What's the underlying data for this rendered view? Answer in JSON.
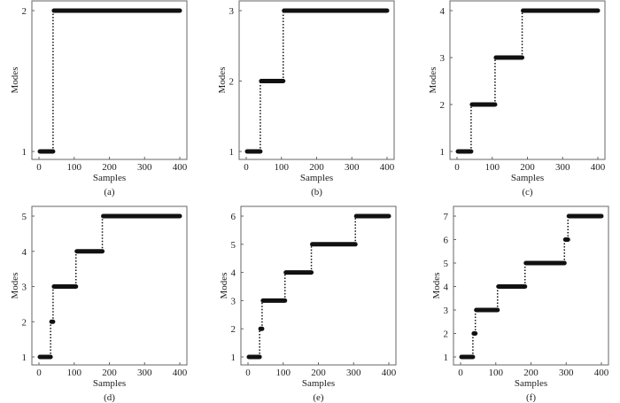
{
  "chart_data": [
    {
      "type": "line",
      "panel_label": "(a)",
      "xlabel": "Samples",
      "ylabel": "Modes",
      "xlim": [
        0,
        400
      ],
      "xticks": [
        0,
        100,
        200,
        300,
        400
      ],
      "yticks": [
        1,
        2
      ],
      "steps": [
        {
          "x0": 0,
          "x1": 40,
          "y": 1
        },
        {
          "x0": 40,
          "x1": 400,
          "y": 2
        }
      ]
    },
    {
      "type": "line",
      "panel_label": "(b)",
      "xlabel": "Samples",
      "ylabel": "Modes",
      "xlim": [
        0,
        400
      ],
      "xticks": [
        0,
        100,
        200,
        300,
        400
      ],
      "yticks": [
        1,
        2,
        3
      ],
      "steps": [
        {
          "x0": 0,
          "x1": 40,
          "y": 1
        },
        {
          "x0": 40,
          "x1": 105,
          "y": 2
        },
        {
          "x0": 105,
          "x1": 400,
          "y": 3
        }
      ]
    },
    {
      "type": "line",
      "panel_label": "(c)",
      "xlabel": "Samples",
      "ylabel": "Modes",
      "xlim": [
        0,
        400
      ],
      "xticks": [
        0,
        100,
        200,
        300,
        400
      ],
      "yticks": [
        1,
        2,
        3,
        4
      ],
      "steps": [
        {
          "x0": 0,
          "x1": 40,
          "y": 1
        },
        {
          "x0": 40,
          "x1": 108,
          "y": 2
        },
        {
          "x0": 108,
          "x1": 185,
          "y": 3
        },
        {
          "x0": 185,
          "x1": 400,
          "y": 4
        }
      ]
    },
    {
      "type": "line",
      "panel_label": "(d)",
      "xlabel": "Samples",
      "ylabel": "Modes",
      "xlim": [
        0,
        400
      ],
      "xticks": [
        0,
        100,
        200,
        300,
        400
      ],
      "yticks": [
        1,
        2,
        3,
        4,
        5
      ],
      "steps": [
        {
          "x0": 0,
          "x1": 33,
          "y": 1
        },
        {
          "x0": 33,
          "x1": 40,
          "y": 2
        },
        {
          "x0": 40,
          "x1": 105,
          "y": 3
        },
        {
          "x0": 105,
          "x1": 180,
          "y": 4
        },
        {
          "x0": 180,
          "x1": 400,
          "y": 5
        }
      ]
    },
    {
      "type": "line",
      "panel_label": "(e)",
      "xlabel": "Samples",
      "ylabel": "Modes",
      "xlim": [
        0,
        400
      ],
      "xticks": [
        0,
        100,
        200,
        300,
        400
      ],
      "yticks": [
        1,
        2,
        3,
        4,
        5,
        6
      ],
      "steps": [
        {
          "x0": 0,
          "x1": 33,
          "y": 1
        },
        {
          "x0": 33,
          "x1": 40,
          "y": 2
        },
        {
          "x0": 40,
          "x1": 105,
          "y": 3
        },
        {
          "x0": 105,
          "x1": 180,
          "y": 4
        },
        {
          "x0": 180,
          "x1": 305,
          "y": 5
        },
        {
          "x0": 305,
          "x1": 400,
          "y": 6
        }
      ]
    },
    {
      "type": "line",
      "panel_label": "(f)",
      "xlabel": "Samples",
      "ylabel": "Modes",
      "xlim": [
        0,
        400
      ],
      "xticks": [
        0,
        100,
        200,
        300,
        400
      ],
      "yticks": [
        1,
        2,
        3,
        4,
        5,
        6,
        7
      ],
      "steps": [
        {
          "x0": 0,
          "x1": 35,
          "y": 1
        },
        {
          "x0": 35,
          "x1": 42,
          "y": 2
        },
        {
          "x0": 42,
          "x1": 105,
          "y": 3
        },
        {
          "x0": 105,
          "x1": 183,
          "y": 4
        },
        {
          "x0": 183,
          "x1": 295,
          "y": 5
        },
        {
          "x0": 295,
          "x1": 305,
          "y": 6
        },
        {
          "x0": 305,
          "x1": 400,
          "y": 7
        }
      ]
    }
  ]
}
